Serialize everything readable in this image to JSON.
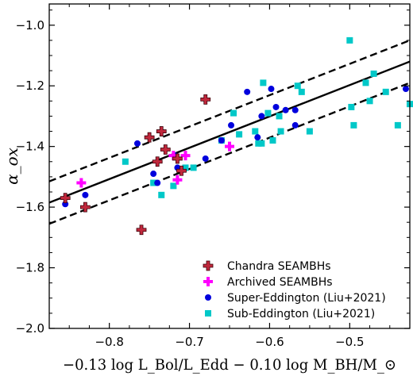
{
  "chart_data": {
    "type": "scatter",
    "xlabel": "−0.13 log L_Bol/L_Edd − 0.10 log M_BH/M_⊙",
    "ylabel": "α_ox",
    "xlim": [
      -0.875,
      -0.425
    ],
    "ylim": [
      -2.0,
      -0.93
    ],
    "x_ticks": [
      -0.8,
      -0.7,
      -0.6,
      -0.5
    ],
    "x_tick_labels": [
      "−0.8",
      "−0.7",
      "−0.6",
      "−0.5"
    ],
    "y_ticks": [
      -2.0,
      -1.8,
      -1.6,
      -1.4,
      -1.2,
      -1.0
    ],
    "y_tick_labels": [
      "−2.0",
      "−1.8",
      "−1.6",
      "−1.4",
      "−1.2",
      "−1.0"
    ],
    "grid": false,
    "legend_position": "bottom-right",
    "fit": {
      "x": [
        -0.875,
        -0.425
      ],
      "y_center": [
        -1.585,
        -1.12
      ],
      "y_upper": [
        -1.515,
        -1.05
      ],
      "y_lower": [
        -1.655,
        -1.19
      ]
    },
    "series": [
      {
        "name": "Chandra SEAMBHs",
        "marker": "plus",
        "color": "#c0283c",
        "x": [
          -0.855,
          -0.83,
          -0.76,
          -0.75,
          -0.74,
          -0.735,
          -0.73,
          -0.715,
          -0.71,
          -0.68
        ],
        "y": [
          -1.57,
          -1.6,
          -1.675,
          -1.37,
          -1.45,
          -1.35,
          -1.41,
          -1.44,
          -1.48,
          -1.245
        ]
      },
      {
        "name": "Archived SEAMBHs",
        "marker": "plus",
        "color": "#ff00ff",
        "x": [
          -0.835,
          -0.72,
          -0.715,
          -0.705,
          -0.65
        ],
        "y": [
          -1.52,
          -1.43,
          -1.51,
          -1.43,
          -1.4
        ]
      },
      {
        "name": "Super-Eddington (Liu+2021)",
        "marker": "circle",
        "color": "#0000dd",
        "x": [
          -0.855,
          -0.83,
          -0.765,
          -0.745,
          -0.74,
          -0.718,
          -0.715,
          -0.68,
          -0.66,
          -0.648,
          -0.628,
          -0.615,
          -0.61,
          -0.598,
          -0.592,
          -0.58,
          -0.568,
          -0.568,
          -0.43
        ],
        "y": [
          -1.59,
          -1.56,
          -1.39,
          -1.49,
          -1.52,
          -1.43,
          -1.47,
          -1.44,
          -1.38,
          -1.33,
          -1.22,
          -1.37,
          -1.3,
          -1.21,
          -1.27,
          -1.28,
          -1.28,
          -1.33,
          -1.21
        ]
      },
      {
        "name": "Sub-Eddington (Liu+2021)",
        "marker": "square",
        "color": "#00c8c8",
        "x": [
          -0.78,
          -0.745,
          -0.735,
          -0.72,
          -0.705,
          -0.695,
          -0.66,
          -0.645,
          -0.638,
          -0.618,
          -0.614,
          -0.61,
          -0.608,
          -0.602,
          -0.596,
          -0.588,
          -0.586,
          -0.565,
          -0.56,
          -0.55,
          -0.5,
          -0.498,
          -0.495,
          -0.48,
          -0.475,
          -0.47,
          -0.455,
          -0.44,
          -0.425
        ],
        "y": [
          -1.45,
          -1.52,
          -1.56,
          -1.53,
          -1.47,
          -1.47,
          -1.38,
          -1.29,
          -1.36,
          -1.35,
          -1.39,
          -1.39,
          -1.19,
          -1.29,
          -1.38,
          -1.3,
          -1.35,
          -1.2,
          -1.22,
          -1.35,
          -1.05,
          -1.27,
          -1.33,
          -1.19,
          -1.25,
          -1.16,
          -1.22,
          -1.33,
          -1.26
        ]
      }
    ]
  }
}
